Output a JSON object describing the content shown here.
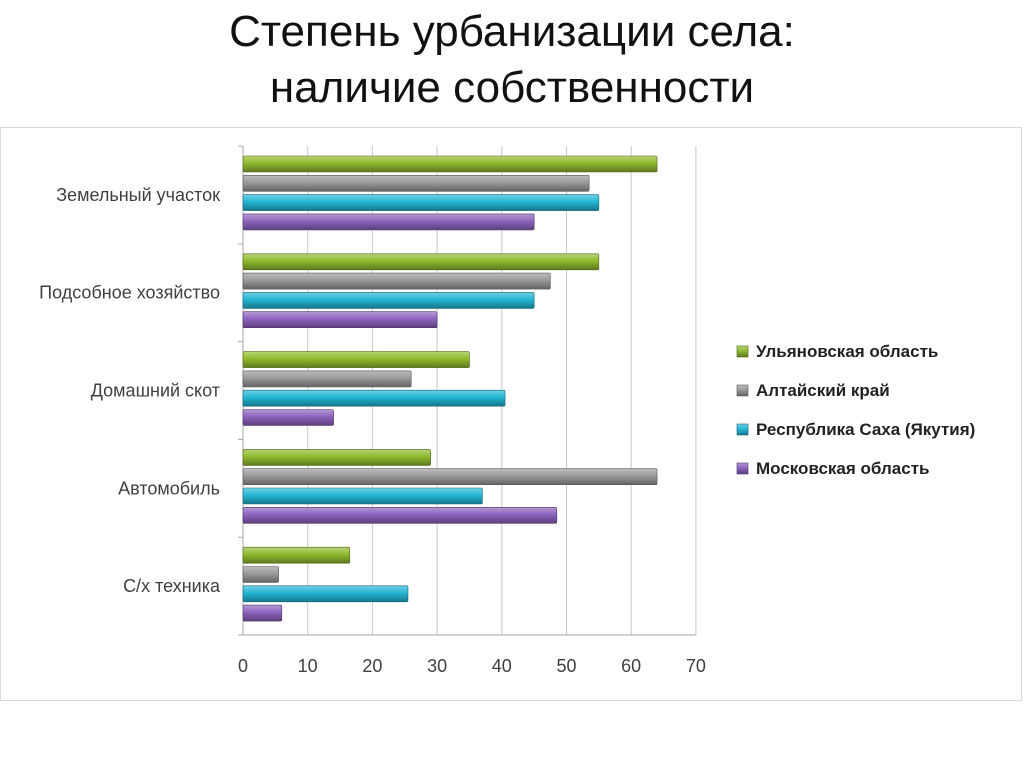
{
  "slide": {
    "title_line1": "Степень урбанизации села:",
    "title_line2": "наличие собственности"
  },
  "chart_data": {
    "type": "bar",
    "orientation": "horizontal",
    "categories": [
      "Земельный участок",
      "Подсобное хозяйство",
      "Домашний скот",
      "Автомобиль",
      "С/х техника"
    ],
    "series": [
      {
        "name": "Ульяновская область",
        "color": "#8fba2e",
        "values": [
          64,
          55,
          35,
          29,
          16.5
        ]
      },
      {
        "name": "Алтайский край",
        "color": "#9a9a9a",
        "values": [
          53.5,
          47.5,
          26,
          64,
          5.5
        ]
      },
      {
        "name": "Республика Саха (Якутия)",
        "color": "#23b6d4",
        "values": [
          55,
          45,
          40.5,
          37,
          25.5
        ]
      },
      {
        "name": "Московская область",
        "color": "#8d63be",
        "values": [
          45,
          30,
          14,
          48.5,
          6
        ]
      }
    ],
    "xlim": [
      0,
      70
    ],
    "xticks": [
      0,
      10,
      20,
      30,
      40,
      50,
      60,
      70
    ],
    "grid": true,
    "legend_position": "right",
    "style": "3d-cylinder-bars"
  }
}
